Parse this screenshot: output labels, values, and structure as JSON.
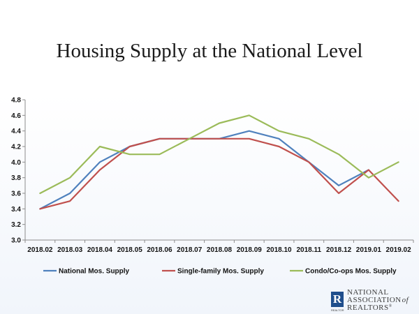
{
  "chart_data": {
    "type": "line",
    "title": "Housing Supply at the National Level",
    "categories": [
      "2018.02",
      "2018.03",
      "2018.04",
      "2018.05",
      "2018.06",
      "2018.07",
      "2018.08",
      "2018.09",
      "2018.10",
      "2018.11",
      "2018.12",
      "2019.01",
      "2019.02"
    ],
    "series": [
      {
        "name": "National Mos. Supply",
        "color": "#4f81bd",
        "values": [
          3.4,
          3.6,
          4.0,
          4.2,
          4.3,
          4.3,
          4.3,
          4.4,
          4.3,
          4.0,
          3.7,
          3.9,
          null
        ]
      },
      {
        "name": "Single-family Mos. Supply",
        "color": "#c0504d",
        "values": [
          3.4,
          3.5,
          3.9,
          4.2,
          4.3,
          4.3,
          4.3,
          4.3,
          4.2,
          4.0,
          3.6,
          3.9,
          3.5
        ]
      },
      {
        "name": "Condo/Co-ops Mos. Supply",
        "color": "#9bbb59",
        "values": [
          3.6,
          3.8,
          4.2,
          4.1,
          4.1,
          4.3,
          4.5,
          4.6,
          4.4,
          4.3,
          4.1,
          3.8,
          4.0
        ]
      }
    ],
    "ylim": [
      3.0,
      4.8
    ],
    "yticks": [
      "3.0",
      "3.2",
      "3.4",
      "3.6",
      "3.8",
      "4.0",
      "4.2",
      "4.4",
      "4.6",
      "4.8"
    ],
    "legend_position": "bottom",
    "grid": false
  },
  "logo": {
    "line1": "NATIONAL",
    "line2": "ASSOCIATION",
    "line2_suffix": "of",
    "line3": "REALTORS",
    "mark_letter": "R",
    "mark_caption": "REALTOR",
    "registered": "®"
  },
  "icons": {
    "logo_mark": "realtor-r-block-icon"
  }
}
